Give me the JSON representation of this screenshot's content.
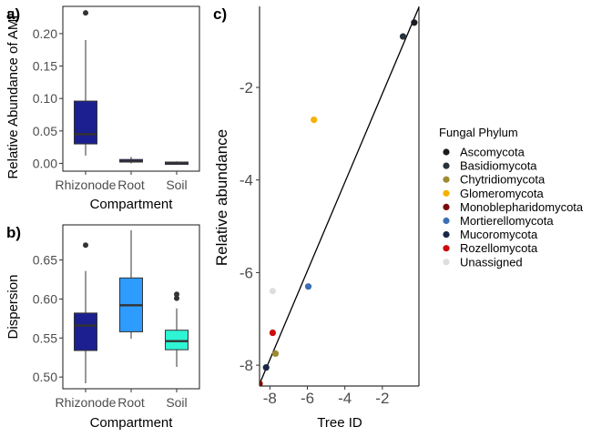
{
  "chart_data": [
    {
      "panel_label": "a)",
      "type": "box",
      "xlabel": "Compartment",
      "ylabel": "Relative Abundance of AMF",
      "categories": [
        "Rhizonode",
        "Root",
        "Soil"
      ],
      "yticks": [
        0.0,
        0.05,
        0.1,
        0.15,
        0.2
      ],
      "ytick_labels": [
        "0.00",
        "0.05",
        "0.10",
        "0.15",
        "0.20"
      ],
      "ylim": [
        -0.012,
        0.242
      ],
      "fill_colors": [
        "#1c1f8f",
        "#1c1f8f",
        "#1c1f8f"
      ],
      "boxes": [
        {
          "min": 0.012,
          "q1": 0.03,
          "median": 0.045,
          "q3": 0.096,
          "max": 0.19,
          "outliers": [
            0.232
          ]
        },
        {
          "min": 0.0,
          "q1": 0.002,
          "median": 0.003,
          "q3": 0.006,
          "max": 0.01,
          "outliers": []
        },
        {
          "min": 0.0,
          "q1": 0.0,
          "median": 0.001,
          "q3": 0.002,
          "max": 0.003,
          "outliers": []
        }
      ]
    },
    {
      "panel_label": "b)",
      "type": "box",
      "xlabel": "Compartment",
      "ylabel": "Dispersion",
      "categories": [
        "Rhizonode",
        "Root",
        "Soil"
      ],
      "yticks": [
        0.5,
        0.55,
        0.6,
        0.65
      ],
      "ytick_labels": [
        "0.50",
        "0.55",
        "0.60",
        "0.65"
      ],
      "ylim": [
        0.485,
        0.695
      ],
      "fill_colors": [
        "#1c1f8f",
        "#2e9bff",
        "#2ef5d4"
      ],
      "boxes": [
        {
          "min": 0.492,
          "q1": 0.534,
          "median": 0.566,
          "q3": 0.582,
          "max": 0.636,
          "outliers": [
            0.669
          ]
        },
        {
          "min": 0.549,
          "q1": 0.558,
          "median": 0.592,
          "q3": 0.627,
          "max": 0.688,
          "outliers": []
        },
        {
          "min": 0.513,
          "q1": 0.535,
          "median": 0.546,
          "q3": 0.56,
          "max": 0.588,
          "outliers": [
            0.601,
            0.606
          ]
        }
      ]
    },
    {
      "panel_label": "c)",
      "type": "scatter",
      "xlabel": "Tree ID",
      "ylabel": "Relative abundance",
      "xlim": [
        -8.55,
        -0.05
      ],
      "ylim": [
        -8.45,
        -0.25
      ],
      "xticks": [
        -8,
        -6,
        -4,
        -2
      ],
      "xtick_labels": [
        "-8",
        "-6",
        "-4",
        "-2"
      ],
      "yticks": [
        -8,
        -6,
        -4,
        -2
      ],
      "ytick_labels": [
        "-8",
        "-6",
        "-4",
        "-2"
      ],
      "fit_line": {
        "x": [
          -8.7,
          0.0
        ],
        "y": [
          -8.55,
          -0.22
        ]
      },
      "legend": {
        "title": "Fungal Phylum",
        "placement": "right",
        "entries": [
          {
            "name": "Ascomycota",
            "color": "#1b1b24"
          },
          {
            "name": "Basidiomycota",
            "color": "#27323a"
          },
          {
            "name": "Chytridiomycota",
            "color": "#9e8a32"
          },
          {
            "name": "Glomeromycota",
            "color": "#f5b000"
          },
          {
            "name": "Monoblepharidomycota",
            "color": "#7b0b0b"
          },
          {
            "name": "Mortierellomycota",
            "color": "#3b6fb4"
          },
          {
            "name": "Mucoromycota",
            "color": "#1a2746"
          },
          {
            "name": "Rozellomycota",
            "color": "#cc0d0d"
          },
          {
            "name": "Unassigned",
            "color": "#dedede"
          }
        ]
      },
      "points": [
        {
          "x": -0.3,
          "y": -0.6,
          "phylum": "Ascomycota"
        },
        {
          "x": -0.9,
          "y": -0.9,
          "phylum": "Basidiomycota"
        },
        {
          "x": -7.7,
          "y": -7.75,
          "phylum": "Chytridiomycota"
        },
        {
          "x": -5.65,
          "y": -2.7,
          "phylum": "Glomeromycota"
        },
        {
          "x": -8.55,
          "y": -8.4,
          "phylum": "Monoblepharidomycota"
        },
        {
          "x": -5.95,
          "y": -6.3,
          "phylum": "Mortierellomycota"
        },
        {
          "x": -8.2,
          "y": -8.05,
          "phylum": "Mucoromycota"
        },
        {
          "x": -7.85,
          "y": -7.3,
          "phylum": "Rozellomycota"
        },
        {
          "x": -7.85,
          "y": -6.4,
          "phylum": "Unassigned"
        }
      ]
    }
  ]
}
